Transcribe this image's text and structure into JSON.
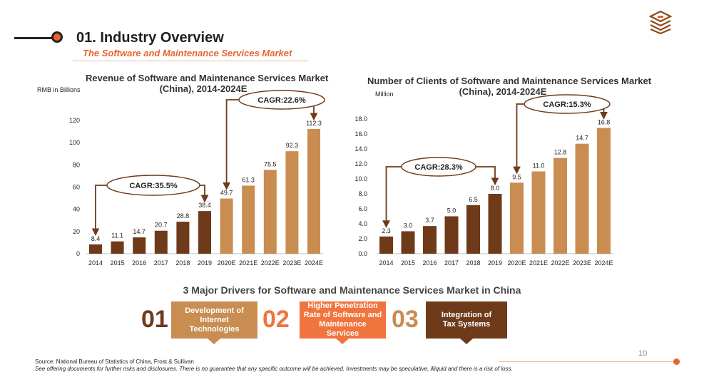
{
  "header": {
    "title": "01. Industry Overview",
    "subtitle": "The Software and Maintenance Services Market"
  },
  "colors": {
    "accent": "#e8642c",
    "dark_bar": "#6e3a1a",
    "light_bar": "#c98d52",
    "driver_mid": "#f0743e"
  },
  "chart_data": [
    {
      "type": "bar",
      "title": "Revenue of Software and Maintenance Services Market (China), 2014-2024E",
      "title_lines": [
        "Revenue of Software and Maintenance Services Market",
        "(China), 2014-2024E"
      ],
      "ylabel": "RMB in Billions",
      "categories": [
        "2014",
        "2015",
        "2016",
        "2017",
        "2018",
        "2019",
        "2020E",
        "2021E",
        "2022E",
        "2023E",
        "2024E"
      ],
      "values": [
        8.4,
        11.1,
        14.7,
        20.7,
        28.8,
        38.4,
        49.7,
        61.3,
        75.5,
        92.3,
        112.3
      ],
      "value_labels": [
        "8.4",
        "11.1",
        "14.7",
        "20.7",
        "28.8",
        "38.4",
        "49.7",
        "61.3",
        "75.5",
        "92.3",
        "112.3"
      ],
      "ylim": [
        0,
        120
      ],
      "yticks": [
        "0",
        "20",
        "40",
        "60",
        "80",
        "100",
        "120"
      ],
      "ytick_values": [
        0,
        20,
        40,
        60,
        80,
        100,
        120
      ],
      "annotations": [
        {
          "label": "CAGR:35.5%",
          "from": 0,
          "to": 5
        },
        {
          "label": "CAGR:22.6%",
          "from": 6,
          "to": 10
        }
      ]
    },
    {
      "type": "bar",
      "title": "Number of Clients of Software and Maintenance Services Market (China), 2014-2024E",
      "title_lines": [
        "Number of Clients of Software and Maintenance Services Market",
        "(China), 2014-2024E"
      ],
      "ylabel": "Million",
      "categories": [
        "2014",
        "2015",
        "2016",
        "2017",
        "2018",
        "2019",
        "2020E",
        "2021E",
        "2022E",
        "2023E",
        "2024E"
      ],
      "values": [
        2.3,
        3.0,
        3.7,
        5.0,
        6.5,
        8.0,
        9.5,
        11.0,
        12.8,
        14.7,
        16.8
      ],
      "value_labels": [
        "2.3",
        "3.0",
        "3.7",
        "5.0",
        "6.5",
        "8.0",
        "9.5",
        "11.0",
        "12.8",
        "14.7",
        "16.8"
      ],
      "ylim": [
        0,
        18
      ],
      "yticks": [
        "0.0",
        "2.0",
        "4.0",
        "6.0",
        "8.0",
        "10.0",
        "12.0",
        "14.0",
        "16.0",
        "18.0"
      ],
      "ytick_values": [
        0,
        2,
        4,
        6,
        8,
        10,
        12,
        14,
        16,
        18
      ],
      "annotations": [
        {
          "label": "CAGR:28.3%",
          "from": 0,
          "to": 5
        },
        {
          "label": "CAGR:15.3%",
          "from": 6,
          "to": 10
        }
      ]
    }
  ],
  "drivers": {
    "title": "3 Major Drivers for Software and Maintenance Services Market in China",
    "items": [
      {
        "number": "01",
        "text": "Development of Internet Technologies"
      },
      {
        "number": "02",
        "text": "Higher Penetration Rate of Software and Maintenance Services"
      },
      {
        "number": "03",
        "text": "Integration of Tax Systems"
      }
    ]
  },
  "footer": {
    "page_number": "10",
    "source": "Source: National Bureau of Statistics of China, Frost & Sullivan",
    "disclaimer": "See offering documents for further risks and disclosures. There is no guarantee that any specific outcome will be achieved. Investments may be speculative, illiquid and there is a risk of loss."
  }
}
